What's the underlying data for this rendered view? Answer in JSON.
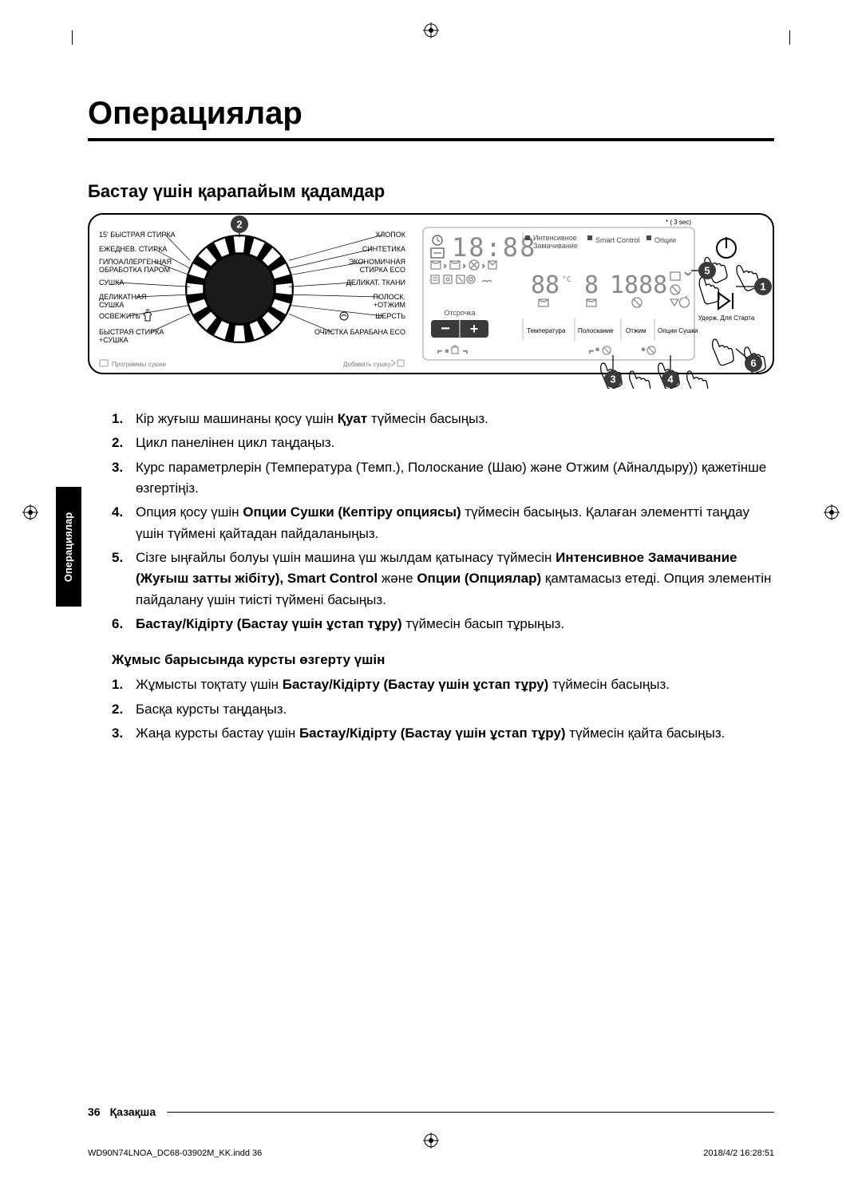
{
  "page": {
    "title": "Операциялар",
    "section_title": "Бастау үшін қарапайым қадамдар",
    "side_tab": "Операциялар",
    "sub_title": "Жұмыс барысында курсты өзгерту үшін",
    "page_number": "36",
    "language": "Қазақша",
    "meta_file": "WD90N74LNOA_DC68-03902M_KK.indd   36",
    "meta_date": "2018/4/2   16:28:51"
  },
  "panel": {
    "dial_left": [
      "15' БЫСТРАЯ СТИРКА",
      "ЕЖЕДНЕВ. СТИРКА",
      "ГИПОАЛЛЕРГЕННАЯ",
      "ОБРАБОТКА ПАРОМ",
      "СУШКА",
      "ДЕЛИКАТНАЯ",
      "СУШКА",
      "ОСВЕЖИТЬ",
      "БЫСТРАЯ СТИРКА",
      "+СУШКА"
    ],
    "dial_right": [
      "ХЛОПОК",
      "СИНТЕТИКА",
      "ЭКОНОМИЧНАЯ",
      "СТИРКА ECO",
      "ДЕЛИКАТ. ТКАНИ",
      "ПОЛОСК.",
      "+ОТЖИМ",
      "ШЕРСТЬ",
      "ОЧИСТКА БАРАБАНА ECO"
    ],
    "dial_bottom_left": "Программы сушки",
    "dial_bottom_right": "Добавить сушку",
    "three_sec": "* ( 3 sec)",
    "top_opts": [
      "Интенсивное",
      "Замачивание",
      "Smart Control",
      "Опции"
    ],
    "delay_label": "Отсрочка",
    "bottom_btns": [
      "Температура",
      "Полоскание",
      "Отжим",
      "Опции Сушки"
    ],
    "hold_label": "Удерж. Для Старта",
    "callouts": [
      "1",
      "2",
      "3",
      "4",
      "5",
      "6"
    ]
  },
  "steps_main": [
    {
      "n": "1.",
      "parts": [
        {
          "t": "Кір жуғыш машинаны қосу үшін "
        },
        {
          "t": "Қуат",
          "b": true
        },
        {
          "t": " түймесін басыңыз."
        }
      ]
    },
    {
      "n": "2.",
      "parts": [
        {
          "t": "Цикл панелінен цикл таңдаңыз."
        }
      ]
    },
    {
      "n": "3.",
      "parts": [
        {
          "t": "Курс параметрлерін (Температура (Темп.), Полоскание (Шаю) және Отжим (Айналдыру)) қажетінше өзгертіңіз."
        }
      ]
    },
    {
      "n": "4.",
      "parts": [
        {
          "t": "Опция қосу үшін "
        },
        {
          "t": "Опции Сушки (Кептіру опциясы)",
          "b": true
        },
        {
          "t": " түймесін басыңыз. Қалаған элементті таңдау үшін түймені қайтадан пайдаланыңыз."
        }
      ]
    },
    {
      "n": "5.",
      "parts": [
        {
          "t": "Сізге ыңғайлы болуы үшін машина үш жылдам қатынасу түймесін "
        },
        {
          "t": "Интенсивное Замачивание (Жуғыш затты жібіту), Smart Control",
          "b": true
        },
        {
          "t": " және "
        },
        {
          "t": "Опции (Опциялар)",
          "b": true
        },
        {
          "t": " қамтамасыз етеді. Опция элементін пайдалану үшін тиісті түймені басыңыз."
        }
      ]
    },
    {
      "n": "6.",
      "parts": [
        {
          "t": "Бастау/Кідірту (Бастау үшін ұстап тұру)",
          "b": true
        },
        {
          "t": " түймесін басып тұрыңыз."
        }
      ]
    }
  ],
  "steps_sub": [
    {
      "n": "1.",
      "parts": [
        {
          "t": "Жұмысты тоқтату үшін "
        },
        {
          "t": "Бастау/Кідірту (Бастау үшін ұстап тұру)",
          "b": true
        },
        {
          "t": " түймесін басыңыз."
        }
      ]
    },
    {
      "n": "2.",
      "parts": [
        {
          "t": "Басқа курсты таңдаңыз."
        }
      ]
    },
    {
      "n": "3.",
      "parts": [
        {
          "t": "Жаңа курсты бастау үшін "
        },
        {
          "t": "Бастау/Кідірту (Бастау үшін ұстап тұру)",
          "b": true
        },
        {
          "t": " түймесін қайта басыңыз."
        }
      ]
    }
  ]
}
